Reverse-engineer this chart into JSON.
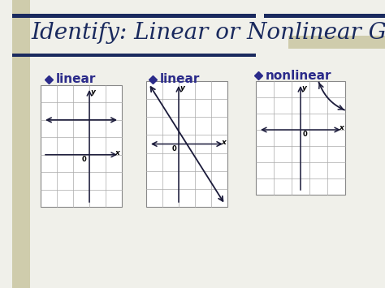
{
  "title": "Identify: Linear or Nonlinear Graph?",
  "title_color": "#1a2a5e",
  "title_fontsize": 20,
  "bg_color": "#f0f0ea",
  "accent_color": "#b5b07a",
  "bar_color": "#1a2a5e",
  "labels": [
    "linear",
    "linear",
    "nonlinear"
  ],
  "bullet_color": "#2b2b8a",
  "label_fontsize": 11,
  "grid_color": "#aaaaaa",
  "graph_border": "#888888"
}
